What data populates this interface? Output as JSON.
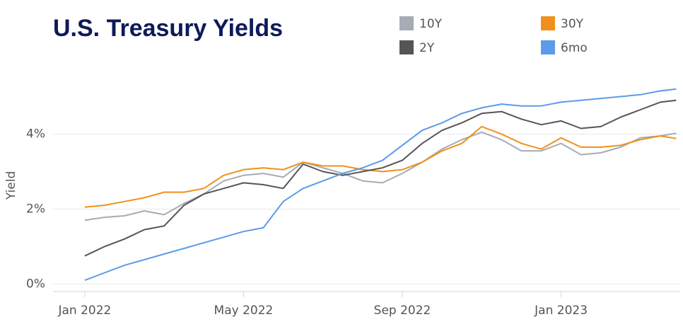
{
  "chart_data": {
    "type": "line",
    "title": "U.S. Treasury Yields",
    "y_label": "Yield",
    "x": [
      0,
      0.5,
      1,
      1.5,
      2,
      2.5,
      3,
      3.5,
      4,
      4.5,
      5,
      5.5,
      6,
      6.5,
      7,
      7.5,
      8,
      8.5,
      9,
      9.5,
      10,
      10.5,
      11,
      11.5,
      12,
      12.5,
      13,
      13.5,
      14,
      14.5,
      14.9
    ],
    "series": [
      {
        "name": "10Y",
        "color": "#a6abb5",
        "values": [
          1.7,
          1.78,
          1.82,
          1.95,
          1.85,
          2.15,
          2.4,
          2.75,
          2.9,
          2.95,
          2.85,
          3.25,
          3.1,
          2.95,
          2.75,
          2.7,
          2.95,
          3.25,
          3.6,
          3.85,
          4.05,
          3.85,
          3.55,
          3.55,
          3.75,
          3.45,
          3.5,
          3.65,
          3.9,
          3.95,
          4.02
        ]
      },
      {
        "name": "30Y",
        "color": "#f0901a",
        "values": [
          2.05,
          2.1,
          2.2,
          2.3,
          2.45,
          2.45,
          2.55,
          2.9,
          3.05,
          3.1,
          3.05,
          3.25,
          3.15,
          3.15,
          3.05,
          3.0,
          3.05,
          3.25,
          3.55,
          3.75,
          4.2,
          4.0,
          3.75,
          3.6,
          3.9,
          3.65,
          3.65,
          3.7,
          3.85,
          3.95,
          3.88
        ]
      },
      {
        "name": "2Y",
        "color": "#555555",
        "values": [
          0.75,
          1.0,
          1.2,
          1.45,
          1.55,
          2.1,
          2.4,
          2.55,
          2.7,
          2.65,
          2.55,
          3.2,
          3.0,
          2.9,
          3.0,
          3.1,
          3.3,
          3.75,
          4.1,
          4.3,
          4.55,
          4.6,
          4.4,
          4.25,
          4.35,
          4.15,
          4.2,
          4.45,
          4.65,
          4.85,
          4.9
        ]
      },
      {
        "name": "6mo",
        "color": "#5b9bea",
        "values": [
          0.1,
          0.3,
          0.5,
          0.65,
          0.8,
          0.95,
          1.1,
          1.25,
          1.4,
          1.5,
          2.2,
          2.55,
          2.75,
          2.95,
          3.1,
          3.3,
          3.7,
          4.1,
          4.3,
          4.55,
          4.7,
          4.8,
          4.75,
          4.75,
          4.85,
          4.9,
          4.95,
          5.0,
          5.05,
          5.15,
          5.2
        ]
      }
    ],
    "xlim": [
      -0.8,
      15
    ],
    "xticks": [
      {
        "value": 0,
        "label": "Jan 2022"
      },
      {
        "value": 4,
        "label": "May 2022"
      },
      {
        "value": 8,
        "label": "Sep 2022"
      },
      {
        "value": 12,
        "label": "Jan 2023"
      }
    ],
    "ylim": [
      -0.2,
      5.5
    ],
    "yticks": [
      {
        "value": 0,
        "label": "0%"
      },
      {
        "value": 2,
        "label": "2%"
      },
      {
        "value": 4,
        "label": "4%"
      }
    ],
    "grid": true
  }
}
